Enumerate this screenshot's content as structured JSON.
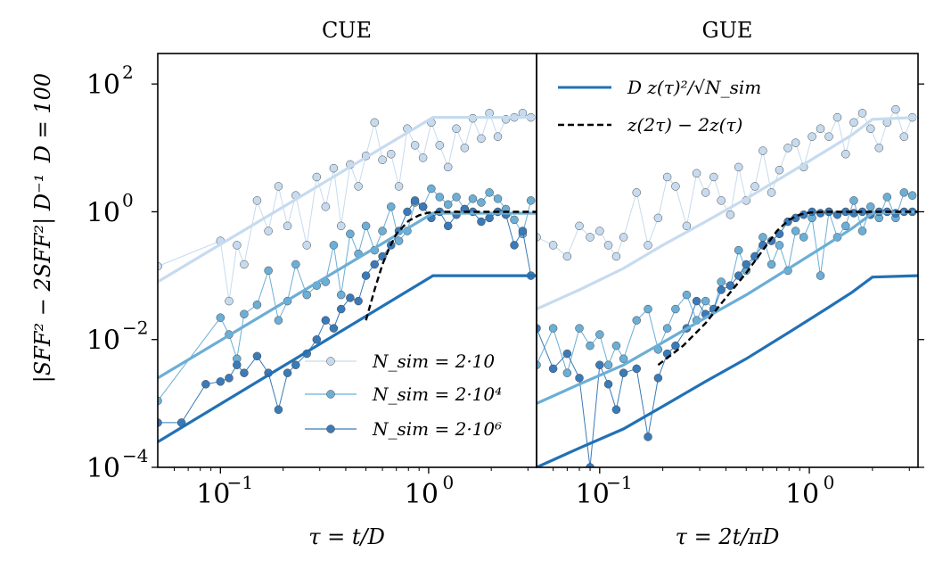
{
  "chart_data": [
    {
      "type": "line",
      "title": "CUE",
      "xlabel": "τ = t/D",
      "ylabel": "|SFF² − 2SFF²| D⁻¹",
      "side_label": "D = 100",
      "xscale": "log",
      "yscale": "log",
      "xlim": [
        0.05,
        3.3
      ],
      "ylim": [
        0.0001,
        300
      ],
      "x_ticks": [
        {
          "v": 0.1,
          "label": "10",
          "exp": "−1"
        },
        {
          "v": 1,
          "label": "10",
          "exp": "0"
        }
      ],
      "y_ticks": [
        {
          "v": 0.0001,
          "label": "10",
          "exp": "−4"
        },
        {
          "v": 0.01,
          "label": "10",
          "exp": "−2"
        },
        {
          "v": 1,
          "label": "10",
          "exp": "0"
        },
        {
          "v": 100,
          "label": "10",
          "exp": "2"
        }
      ],
      "legend": {
        "placement": "lower-right",
        "entries": [
          "N_sim = 2·10",
          "N_sim = 2·10⁴",
          "N_sim = 2·10⁶"
        ]
      },
      "series": [
        {
          "name": "N_sim = 2·10",
          "color": "#c6dbef",
          "style": "markers",
          "x": [
            0.05,
            0.1,
            0.11,
            0.12,
            0.13,
            0.15,
            0.17,
            0.19,
            0.21,
            0.23,
            0.26,
            0.29,
            0.32,
            0.35,
            0.38,
            0.42,
            0.46,
            0.5,
            0.55,
            0.6,
            0.66,
            0.72,
            0.79,
            0.86,
            0.94,
            1.03,
            1.13,
            1.24,
            1.36,
            1.49,
            1.63,
            1.79,
            1.96,
            2.15,
            2.35,
            2.58,
            2.83,
            3.1
          ],
          "y": [
            0.14,
            0.35,
            0.04,
            0.3,
            0.15,
            1.5,
            0.5,
            2.5,
            0.6,
            1.8,
            0.3,
            3.5,
            1.2,
            4.8,
            0.6,
            5.5,
            2.5,
            7.5,
            25,
            6.5,
            8.0,
            2.5,
            20,
            11,
            7.0,
            25,
            11,
            5,
            20,
            10,
            29,
            14,
            35,
            15,
            28,
            30,
            35,
            30
          ]
        },
        {
          "name": "N_sim = 2·10⁴",
          "color": "#6baed6",
          "style": "markers",
          "x": [
            0.05,
            0.1,
            0.11,
            0.12,
            0.13,
            0.15,
            0.17,
            0.19,
            0.21,
            0.23,
            0.26,
            0.29,
            0.32,
            0.35,
            0.38,
            0.42,
            0.46,
            0.5,
            0.55,
            0.6,
            0.66,
            0.72,
            0.79,
            0.86,
            0.94,
            1.03,
            1.13,
            1.24,
            1.36,
            1.49,
            1.63,
            1.79,
            1.96,
            2.15,
            2.35,
            2.58,
            2.83,
            3.1
          ],
          "y": [
            0.0011,
            0.022,
            0.012,
            0.005,
            0.025,
            0.035,
            0.12,
            0.02,
            0.04,
            0.15,
            0.05,
            0.07,
            0.08,
            0.3,
            0.05,
            0.45,
            0.22,
            0.6,
            0.25,
            0.5,
            1.2,
            0.35,
            0.5,
            1.4,
            1.2,
            2.3,
            1.7,
            1.3,
            1.7,
            1.1,
            1.6,
            1.4,
            2.0,
            1.6,
            1.1,
            0.75,
            0.45,
            1.5
          ]
        },
        {
          "name": "N_sim = 2·10⁶",
          "color": "#3a7ab8",
          "style": "markers",
          "x": [
            0.05,
            0.065,
            0.085,
            0.1,
            0.11,
            0.12,
            0.13,
            0.15,
            0.17,
            0.19,
            0.21,
            0.23,
            0.26,
            0.29,
            0.32,
            0.35,
            0.38,
            0.42,
            0.46,
            0.5,
            0.55,
            0.6,
            0.66,
            0.72,
            0.79,
            0.86,
            0.94,
            1.03,
            1.13,
            1.24,
            1.36,
            1.49,
            1.63,
            1.79,
            1.96,
            2.15,
            2.35,
            2.58,
            2.83,
            3.1
          ],
          "y": [
            0.0005,
            0.0005,
            0.002,
            0.0022,
            0.0025,
            0.004,
            0.003,
            0.0055,
            0.003,
            0.0008,
            0.003,
            0.004,
            0.006,
            0.01,
            0.02,
            0.015,
            0.03,
            0.045,
            0.04,
            0.1,
            0.15,
            0.2,
            0.3,
            0.5,
            1.0,
            1.5,
            1.2,
            0.8,
            1.0,
            0.6,
            0.9,
            1.1,
            1.0,
            0.7,
            0.8,
            1.0,
            0.9,
            0.3,
            0.5,
            0.1
          ]
        },
        {
          "name": "",
          "color": "#c6dbef",
          "style": "theory",
          "x": [
            0.05,
            1.05,
            3.3
          ],
          "y": [
            0.08,
            30,
            30
          ]
        },
        {
          "name": "",
          "color": "#6baed6",
          "style": "theory",
          "x": [
            0.05,
            1.05,
            3.3
          ],
          "y": [
            0.0025,
            0.95,
            0.95
          ]
        },
        {
          "name": "",
          "color": "#2171b5",
          "style": "theory",
          "x": [
            0.05,
            1.05,
            3.3
          ],
          "y": [
            0.00025,
            0.1,
            0.1
          ]
        },
        {
          "name": "",
          "color": "#000000",
          "style": "dashed",
          "x": [
            0.5,
            0.55,
            0.6,
            0.65,
            0.7,
            0.8,
            0.9,
            1.0,
            1.2,
            1.5,
            2.0,
            3.3
          ],
          "y": [
            0.02,
            0.06,
            0.15,
            0.28,
            0.45,
            0.72,
            0.88,
            0.97,
            1.0,
            1.0,
            1.0,
            1.0
          ]
        }
      ]
    },
    {
      "type": "line",
      "title": "GUE",
      "xlabel": "τ = 2t/πD",
      "xscale": "log",
      "yscale": "log",
      "xlim": [
        0.05,
        3.3
      ],
      "ylim": [
        0.0001,
        300
      ],
      "x_ticks": [
        {
          "v": 0.1,
          "label": "10",
          "exp": "−1"
        },
        {
          "v": 1,
          "label": "10",
          "exp": "0"
        }
      ],
      "legend": {
        "placement": "top-left",
        "entries": [
          "D z(τ)²/√N_sim",
          "z(2τ) − 2z(τ)"
        ]
      },
      "series": [
        {
          "name": "N_sim = 2·10",
          "color": "#c6dbef",
          "style": "markers",
          "x": [
            0.05,
            0.06,
            0.07,
            0.08,
            0.09,
            0.1,
            0.11,
            0.12,
            0.13,
            0.15,
            0.17,
            0.19,
            0.21,
            0.23,
            0.26,
            0.29,
            0.32,
            0.35,
            0.38,
            0.42,
            0.46,
            0.5,
            0.55,
            0.6,
            0.66,
            0.72,
            0.79,
            0.86,
            0.94,
            1.03,
            1.13,
            1.24,
            1.36,
            1.49,
            1.63,
            1.79,
            1.96,
            2.15,
            2.35,
            2.58,
            2.83,
            3.1
          ],
          "y": [
            0.4,
            0.3,
            0.2,
            0.6,
            0.4,
            0.5,
            0.3,
            0.2,
            0.4,
            2.0,
            0.3,
            0.8,
            3.5,
            2.5,
            0.6,
            4.0,
            2.0,
            3.5,
            1.5,
            0.9,
            5.0,
            1.5,
            2.5,
            9.0,
            2.0,
            4.5,
            10,
            12,
            5,
            15,
            20,
            15,
            30,
            8,
            25,
            35,
            20,
            10,
            25,
            40,
            15,
            30
          ]
        },
        {
          "name": "N_sim = 2·10⁴",
          "color": "#6baed6",
          "style": "markers",
          "x": [
            0.05,
            0.06,
            0.07,
            0.08,
            0.09,
            0.1,
            0.11,
            0.12,
            0.13,
            0.15,
            0.17,
            0.19,
            0.21,
            0.23,
            0.26,
            0.29,
            0.32,
            0.35,
            0.38,
            0.42,
            0.46,
            0.5,
            0.55,
            0.6,
            0.66,
            0.72,
            0.79,
            0.86,
            0.94,
            1.03,
            1.13,
            1.24,
            1.36,
            1.49,
            1.63,
            1.79,
            1.96,
            2.15,
            2.35,
            2.58,
            2.83,
            3.1
          ],
          "y": [
            0.004,
            0.015,
            0.003,
            0.015,
            0.008,
            0.012,
            0.004,
            0.008,
            0.005,
            0.02,
            0.03,
            0.007,
            0.015,
            0.03,
            0.05,
            0.02,
            0.04,
            0.03,
            0.08,
            0.07,
            0.25,
            0.12,
            0.2,
            0.4,
            0.15,
            0.3,
            0.12,
            0.5,
            0.4,
            0.8,
            0.1,
            1.0,
            0.4,
            0.6,
            1.5,
            0.5,
            1.2,
            0.8,
            1.7,
            0.8,
            2.0,
            1.8
          ]
        },
        {
          "name": "N_sim = 2·10⁶",
          "color": "#3a7ab8",
          "style": "markers",
          "x": [
            0.05,
            0.06,
            0.07,
            0.08,
            0.09,
            0.1,
            0.11,
            0.12,
            0.13,
            0.15,
            0.17,
            0.19,
            0.21,
            0.23,
            0.26,
            0.29,
            0.32,
            0.35,
            0.38,
            0.42,
            0.46,
            0.5,
            0.55,
            0.6,
            0.66,
            0.72,
            0.79,
            0.86,
            0.94,
            1.03,
            1.13,
            1.24,
            1.36,
            1.49,
            1.63,
            1.79,
            1.96,
            2.15,
            2.35,
            2.58,
            2.83,
            3.1
          ],
          "y": [
            0.015,
            0.0035,
            0.006,
            0.0025,
            0.0001,
            0.004,
            0.002,
            0.0008,
            0.003,
            0.0035,
            0.0003,
            0.0025,
            0.006,
            0.008,
            0.015,
            0.04,
            0.025,
            0.03,
            0.06,
            0.07,
            0.1,
            0.15,
            0.2,
            0.3,
            0.35,
            0.45,
            0.7,
            0.8,
            0.9,
            1.0,
            0.95,
            1.0,
            0.9,
            1.0,
            0.95,
            1.0,
            0.9,
            1.0,
            1.0,
            0.95,
            1.0,
            1.0
          ]
        },
        {
          "name": "D z(τ)²/√N_sim",
          "color": "#c6dbef",
          "style": "theory",
          "x": [
            0.05,
            0.08,
            0.13,
            0.2,
            0.32,
            0.5,
            0.8,
            1.2,
            1.6,
            2.0,
            3.3
          ],
          "y": [
            0.03,
            0.06,
            0.13,
            0.3,
            0.7,
            1.6,
            4,
            9,
            16,
            28,
            30
          ]
        },
        {
          "name": "",
          "color": "#6baed6",
          "style": "theory",
          "x": [
            0.05,
            0.08,
            0.13,
            0.2,
            0.32,
            0.5,
            0.8,
            1.2,
            1.6,
            2.0,
            3.3
          ],
          "y": [
            0.001,
            0.002,
            0.004,
            0.009,
            0.022,
            0.05,
            0.13,
            0.3,
            0.55,
            0.95,
            1.0
          ]
        },
        {
          "name": "",
          "color": "#2171b5",
          "style": "theory",
          "x": [
            0.05,
            0.08,
            0.13,
            0.2,
            0.32,
            0.5,
            0.8,
            1.2,
            1.6,
            2.0,
            3.3
          ],
          "y": [
            0.0001,
            0.0002,
            0.0004,
            0.0009,
            0.0022,
            0.005,
            0.013,
            0.03,
            0.055,
            0.095,
            0.1
          ]
        },
        {
          "name": "z(2τ) − 2z(τ)",
          "color": "#000000",
          "style": "dashed",
          "x": [
            0.19,
            0.25,
            0.32,
            0.4,
            0.5,
            0.6,
            0.7,
            0.8,
            0.9,
            1.0,
            1.2,
            1.5,
            2.0,
            3.3
          ],
          "y": [
            0.004,
            0.008,
            0.018,
            0.045,
            0.11,
            0.25,
            0.5,
            0.75,
            0.9,
            0.97,
            1.0,
            1.0,
            1.0,
            1.0
          ]
        }
      ]
    }
  ]
}
